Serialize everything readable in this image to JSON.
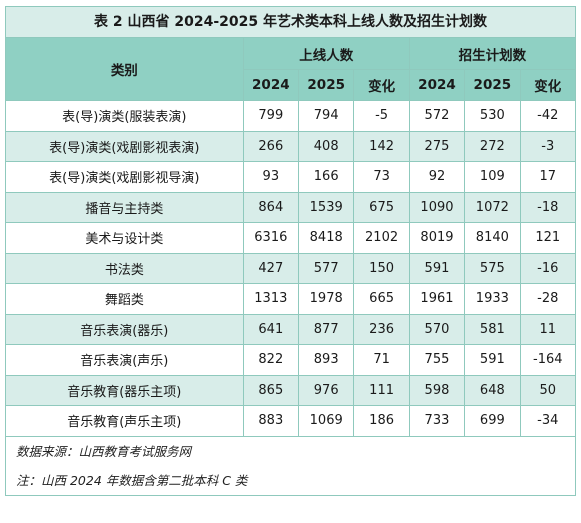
{
  "title": "表 2 山西省 2024-2025 年艺术类本科上线人数及招生计划数",
  "header": {
    "category": "类别",
    "group_admitted": "上线人数",
    "group_plan": "招生计划数",
    "sub": [
      "2024",
      "2025",
      "变化",
      "2024",
      "2025",
      "变化"
    ]
  },
  "rows": [
    {
      "cat": "表(导)演类(服装表演)",
      "v": [
        "799",
        "794",
        "-5",
        "572",
        "530",
        "-42"
      ]
    },
    {
      "cat": "表(导)演类(戏剧影视表演)",
      "v": [
        "266",
        "408",
        "142",
        "275",
        "272",
        "-3"
      ]
    },
    {
      "cat": "表(导)演类(戏剧影视导演)",
      "v": [
        "93",
        "166",
        "73",
        "92",
        "109",
        "17"
      ]
    },
    {
      "cat": "播音与主持类",
      "v": [
        "864",
        "1539",
        "675",
        "1090",
        "1072",
        "-18"
      ]
    },
    {
      "cat": "美术与设计类",
      "v": [
        "6316",
        "8418",
        "2102",
        "8019",
        "8140",
        "121"
      ]
    },
    {
      "cat": "书法类",
      "v": [
        "427",
        "577",
        "150",
        "591",
        "575",
        "-16"
      ]
    },
    {
      "cat": "舞蹈类",
      "v": [
        "1313",
        "1978",
        "665",
        "1961",
        "1933",
        "-28"
      ]
    },
    {
      "cat": "音乐表演(器乐)",
      "v": [
        "641",
        "877",
        "236",
        "570",
        "581",
        "11"
      ]
    },
    {
      "cat": "音乐表演(声乐)",
      "v": [
        "822",
        "893",
        "71",
        "755",
        "591",
        "-164"
      ]
    },
    {
      "cat": "音乐教育(器乐主项)",
      "v": [
        "865",
        "976",
        "111",
        "598",
        "648",
        "50"
      ]
    },
    {
      "cat": "音乐教育(声乐主项)",
      "v": [
        "883",
        "1069",
        "186",
        "733",
        "699",
        "-34"
      ]
    }
  ],
  "notes": {
    "source": "数据来源：山西教育考试服务网",
    "note": "注：山西 2024 年数据含第二批本科 C 类"
  }
}
